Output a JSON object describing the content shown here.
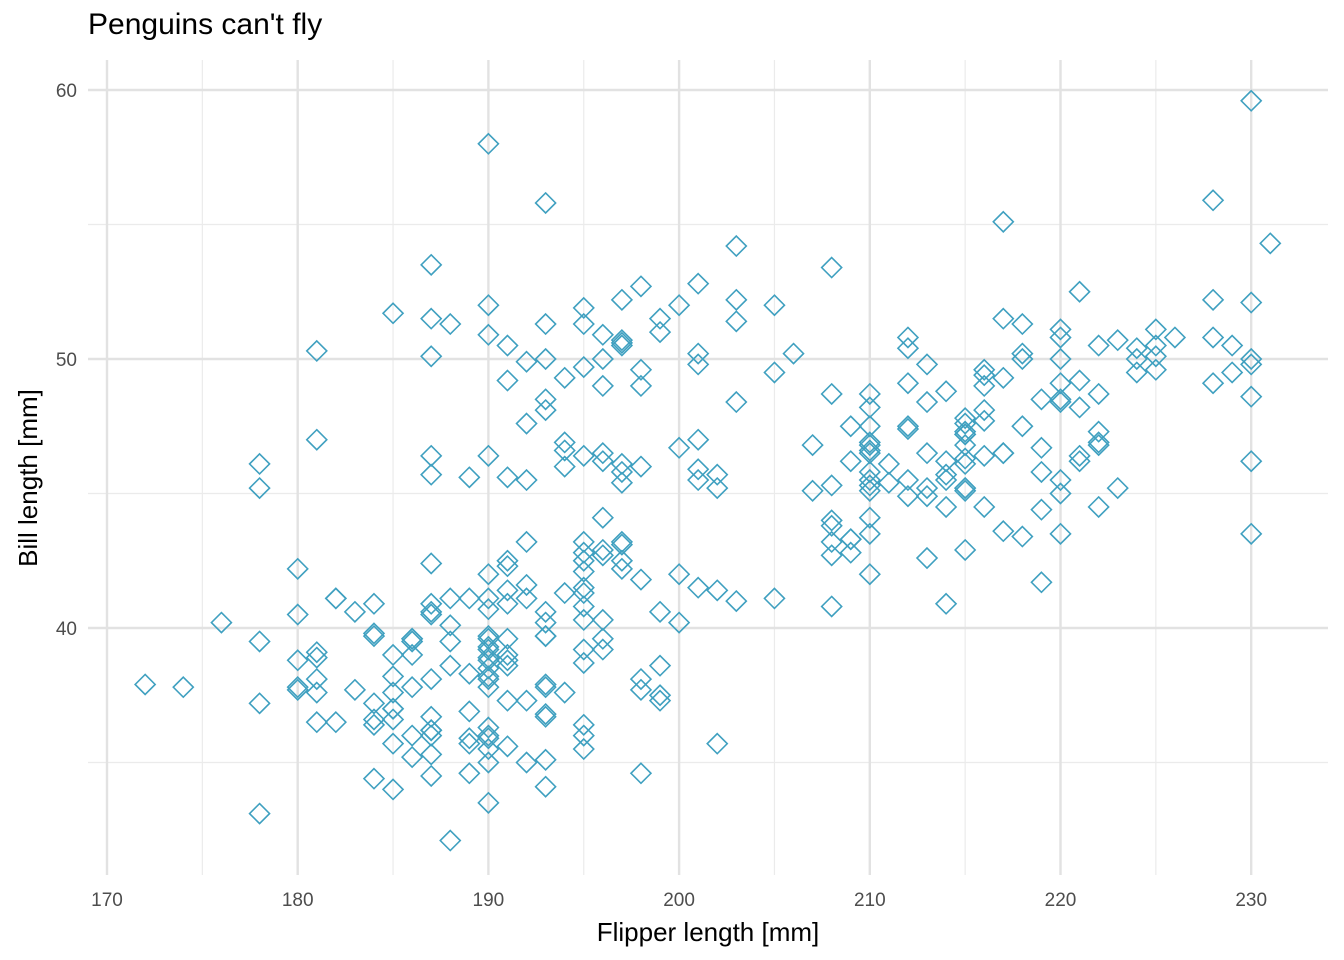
{
  "chart_data": {
    "type": "scatter",
    "title": "Penguins can't fly",
    "xlabel": "Flipper length [mm]",
    "ylabel": "Bill length [mm]",
    "xlim": [
      169.5,
      233.5
    ],
    "ylim": [
      31.0,
      60.5
    ],
    "x_ticks": [
      170,
      180,
      190,
      200,
      210,
      220,
      230
    ],
    "y_ticks": [
      40,
      50,
      60
    ],
    "grid": true,
    "marker": "open-diamond",
    "point_color": "#3fa0c0",
    "points": [
      [
        181,
        39.1
      ],
      [
        186,
        39.5
      ],
      [
        195,
        40.3
      ],
      [
        193,
        36.7
      ],
      [
        190,
        39.3
      ],
      [
        181,
        38.9
      ],
      [
        195,
        39.2
      ],
      [
        193,
        34.1
      ],
      [
        190,
        42.0
      ],
      [
        186,
        37.8
      ],
      [
        180,
        37.8
      ],
      [
        182,
        41.1
      ],
      [
        191,
        38.6
      ],
      [
        198,
        34.6
      ],
      [
        185,
        36.6
      ],
      [
        195,
        38.7
      ],
      [
        197,
        42.5
      ],
      [
        184,
        34.4
      ],
      [
        194,
        46.0
      ],
      [
        174,
        37.8
      ],
      [
        180,
        37.7
      ],
      [
        189,
        35.9
      ],
      [
        185,
        38.2
      ],
      [
        180,
        38.8
      ],
      [
        187,
        35.3
      ],
      [
        183,
        40.6
      ],
      [
        187,
        40.5
      ],
      [
        172,
        37.9
      ],
      [
        180,
        40.5
      ],
      [
        178,
        39.5
      ],
      [
        178,
        37.2
      ],
      [
        188,
        39.5
      ],
      [
        184,
        40.9
      ],
      [
        195,
        36.4
      ],
      [
        196,
        39.2
      ],
      [
        190,
        38.8
      ],
      [
        180,
        42.2
      ],
      [
        181,
        37.6
      ],
      [
        184,
        39.8
      ],
      [
        182,
        36.5
      ],
      [
        195,
        40.8
      ],
      [
        186,
        36.0
      ],
      [
        196,
        44.1
      ],
      [
        185,
        37.0
      ],
      [
        190,
        39.6
      ],
      [
        182,
        41.1
      ],
      [
        190,
        36.0
      ],
      [
        191,
        42.3
      ],
      [
        186,
        39.6
      ],
      [
        188,
        40.1
      ],
      [
        190,
        35.0
      ],
      [
        200,
        42.0
      ],
      [
        187,
        34.5
      ],
      [
        191,
        41.4
      ],
      [
        186,
        39.0
      ],
      [
        193,
        40.6
      ],
      [
        181,
        36.5
      ],
      [
        194,
        37.6
      ],
      [
        185,
        35.7
      ],
      [
        195,
        41.3
      ],
      [
        185,
        37.6
      ],
      [
        192,
        41.1
      ],
      [
        184,
        36.4
      ],
      [
        192,
        41.6
      ],
      [
        195,
        35.5
      ],
      [
        188,
        41.1
      ],
      [
        190,
        35.9
      ],
      [
        198,
        41.8
      ],
      [
        190,
        33.5
      ],
      [
        190,
        39.7
      ],
      [
        196,
        39.6
      ],
      [
        197,
        45.8
      ],
      [
        190,
        35.5
      ],
      [
        195,
        42.8
      ],
      [
        191,
        40.9
      ],
      [
        184,
        37.2
      ],
      [
        187,
        36.2
      ],
      [
        195,
        42.1
      ],
      [
        189,
        34.6
      ],
      [
        196,
        42.9
      ],
      [
        187,
        36.7
      ],
      [
        193,
        35.1
      ],
      [
        191,
        37.3
      ],
      [
        194,
        41.3
      ],
      [
        190,
        36.3
      ],
      [
        189,
        36.9
      ],
      [
        189,
        38.3
      ],
      [
        190,
        38.9
      ],
      [
        202,
        35.7
      ],
      [
        205,
        41.1
      ],
      [
        185,
        34.0
      ],
      [
        186,
        39.6
      ],
      [
        187,
        36.2
      ],
      [
        208,
        40.8
      ],
      [
        190,
        38.1
      ],
      [
        196,
        40.3
      ],
      [
        178,
        33.1
      ],
      [
        192,
        43.2
      ],
      [
        192,
        35.0
      ],
      [
        203,
        41.0
      ],
      [
        183,
        37.7
      ],
      [
        190,
        37.8
      ],
      [
        193,
        37.9
      ],
      [
        184,
        39.7
      ],
      [
        199,
        38.6
      ],
      [
        190,
        38.2
      ],
      [
        181,
        38.1
      ],
      [
        197,
        43.2
      ],
      [
        198,
        38.1
      ],
      [
        191,
        45.6
      ],
      [
        193,
        39.7
      ],
      [
        197,
        42.2
      ],
      [
        191,
        39.6
      ],
      [
        196,
        42.7
      ],
      [
        188,
        38.6
      ],
      [
        199,
        37.3
      ],
      [
        189,
        35.7
      ],
      [
        189,
        41.1
      ],
      [
        187,
        36.2
      ],
      [
        198,
        37.7
      ],
      [
        176,
        40.2
      ],
      [
        202,
        41.4
      ],
      [
        186,
        35.2
      ],
      [
        199,
        40.6
      ],
      [
        191,
        38.8
      ],
      [
        195,
        41.5
      ],
      [
        191,
        39.0
      ],
      [
        210,
        44.1
      ],
      [
        190,
        38.5
      ],
      [
        197,
        43.1
      ],
      [
        193,
        36.8
      ],
      [
        199,
        37.5
      ],
      [
        187,
        38.1
      ],
      [
        190,
        41.1
      ],
      [
        191,
        35.6
      ],
      [
        200,
        40.2
      ],
      [
        185,
        37.0
      ],
      [
        193,
        39.7
      ],
      [
        193,
        40.2
      ],
      [
        187,
        40.6
      ],
      [
        188,
        32.1
      ],
      [
        190,
        40.7
      ],
      [
        192,
        37.3
      ],
      [
        185,
        39.0
      ],
      [
        190,
        39.2
      ],
      [
        184,
        36.6
      ],
      [
        195,
        36.0
      ],
      [
        193,
        37.8
      ],
      [
        187,
        36.0
      ],
      [
        201,
        41.5
      ],
      [
        211,
        46.1
      ],
      [
        230,
        50.0
      ],
      [
        210,
        48.7
      ],
      [
        218,
        50.0
      ],
      [
        215,
        47.6
      ],
      [
        210,
        46.5
      ],
      [
        211,
        45.4
      ],
      [
        219,
        46.7
      ],
      [
        209,
        43.3
      ],
      [
        215,
        46.8
      ],
      [
        214,
        40.9
      ],
      [
        216,
        49.0
      ],
      [
        214,
        45.5
      ],
      [
        213,
        48.4
      ],
      [
        210,
        45.8
      ],
      [
        217,
        49.3
      ],
      [
        210,
        42.0
      ],
      [
        221,
        49.2
      ],
      [
        209,
        46.2
      ],
      [
        222,
        48.7
      ],
      [
        218,
        50.2
      ],
      [
        215,
        45.1
      ],
      [
        213,
        46.5
      ],
      [
        215,
        46.3
      ],
      [
        215,
        42.9
      ],
      [
        215,
        46.1
      ],
      [
        216,
        44.5
      ],
      [
        215,
        47.8
      ],
      [
        210,
        48.2
      ],
      [
        220,
        50.0
      ],
      [
        222,
        47.3
      ],
      [
        209,
        42.8
      ],
      [
        207,
        45.1
      ],
      [
        230,
        59.6
      ],
      [
        220,
        49.1
      ],
      [
        220,
        48.4
      ],
      [
        213,
        42.6
      ],
      [
        219,
        44.4
      ],
      [
        208,
        44.0
      ],
      [
        208,
        48.7
      ],
      [
        208,
        42.7
      ],
      [
        225,
        49.6
      ],
      [
        210,
        45.3
      ],
      [
        216,
        49.6
      ],
      [
        222,
        50.5
      ],
      [
        217,
        43.6
      ],
      [
        210,
        45.5
      ],
      [
        225,
        50.5
      ],
      [
        213,
        44.9
      ],
      [
        215,
        45.2
      ],
      [
        210,
        46.6
      ],
      [
        220,
        48.5
      ],
      [
        210,
        45.1
      ],
      [
        225,
        50.1
      ],
      [
        217,
        46.5
      ],
      [
        220,
        45.0
      ],
      [
        208,
        43.8
      ],
      [
        220,
        45.5
      ],
      [
        208,
        43.2
      ],
      [
        224,
        50.4
      ],
      [
        208,
        45.3
      ],
      [
        221,
        46.2
      ],
      [
        214,
        45.7
      ],
      [
        231,
        54.3
      ],
      [
        219,
        45.8
      ],
      [
        230,
        49.8
      ],
      [
        214,
        46.2
      ],
      [
        229,
        49.5
      ],
      [
        220,
        43.5
      ],
      [
        223,
        50.7
      ],
      [
        216,
        47.7
      ],
      [
        221,
        46.4
      ],
      [
        221,
        48.2
      ],
      [
        217,
        46.5
      ],
      [
        216,
        46.4
      ],
      [
        230,
        48.6
      ],
      [
        209,
        47.5
      ],
      [
        220,
        51.1
      ],
      [
        215,
        45.2
      ],
      [
        223,
        45.2
      ],
      [
        212,
        49.1
      ],
      [
        221,
        52.5
      ],
      [
        212,
        47.4
      ],
      [
        224,
        50.0
      ],
      [
        212,
        44.9
      ],
      [
        228,
        50.8
      ],
      [
        218,
        43.4
      ],
      [
        218,
        51.3
      ],
      [
        212,
        47.5
      ],
      [
        230,
        52.1
      ],
      [
        218,
        47.5
      ],
      [
        228,
        52.2
      ],
      [
        212,
        45.5
      ],
      [
        224,
        49.5
      ],
      [
        214,
        44.5
      ],
      [
        226,
        50.8
      ],
      [
        216,
        49.4
      ],
      [
        222,
        46.9
      ],
      [
        203,
        48.4
      ],
      [
        225,
        51.1
      ],
      [
        219,
        48.5
      ],
      [
        228,
        55.9
      ],
      [
        215,
        47.2
      ],
      [
        228,
        49.1
      ],
      [
        215,
        47.3
      ],
      [
        210,
        46.8
      ],
      [
        219,
        41.7
      ],
      [
        208,
        53.4
      ],
      [
        209,
        43.3
      ],
      [
        216,
        48.1
      ],
      [
        229,
        50.5
      ],
      [
        213,
        49.8
      ],
      [
        230,
        43.5
      ],
      [
        217,
        51.5
      ],
      [
        230,
        46.2
      ],
      [
        217,
        55.1
      ],
      [
        222,
        44.5
      ],
      [
        214,
        48.8
      ],
      [
        215,
        47.2
      ],
      [
        222,
        46.8
      ],
      [
        212,
        50.4
      ],
      [
        213,
        45.2
      ],
      [
        192,
        49.9
      ],
      [
        196,
        46.5
      ],
      [
        193,
        50.0
      ],
      [
        188,
        51.3
      ],
      [
        197,
        45.4
      ],
      [
        198,
        52.7
      ],
      [
        178,
        45.2
      ],
      [
        197,
        46.1
      ],
      [
        195,
        51.3
      ],
      [
        198,
        46.0
      ],
      [
        193,
        51.3
      ],
      [
        194,
        46.6
      ],
      [
        185,
        51.7
      ],
      [
        201,
        47.0
      ],
      [
        190,
        52.0
      ],
      [
        201,
        45.9
      ],
      [
        197,
        50.5
      ],
      [
        181,
        50.3
      ],
      [
        190,
        58.0
      ],
      [
        195,
        46.4
      ],
      [
        191,
        49.2
      ],
      [
        187,
        42.4
      ],
      [
        193,
        48.5
      ],
      [
        195,
        43.2
      ],
      [
        197,
        50.6
      ],
      [
        200,
        46.7
      ],
      [
        200,
        52.0
      ],
      [
        191,
        50.5
      ],
      [
        205,
        49.5
      ],
      [
        187,
        46.4
      ],
      [
        201,
        52.8
      ],
      [
        187,
        40.9
      ],
      [
        203,
        54.2
      ],
      [
        195,
        42.5
      ],
      [
        199,
        51.0
      ],
      [
        195,
        49.7
      ],
      [
        210,
        47.5
      ],
      [
        192,
        47.6
      ],
      [
        205,
        52.0
      ],
      [
        210,
        46.9
      ],
      [
        187,
        53.5
      ],
      [
        196,
        49.0
      ],
      [
        196,
        46.2
      ],
      [
        196,
        50.9
      ],
      [
        201,
        45.5
      ],
      [
        190,
        50.9
      ],
      [
        212,
        50.8
      ],
      [
        187,
        50.1
      ],
      [
        198,
        49.0
      ],
      [
        199,
        51.5
      ],
      [
        201,
        49.8
      ],
      [
        193,
        48.1
      ],
      [
        203,
        51.4
      ],
      [
        187,
        45.7
      ],
      [
        197,
        50.7
      ],
      [
        191,
        42.5
      ],
      [
        203,
        52.2
      ],
      [
        202,
        45.2
      ],
      [
        194,
        49.3
      ],
      [
        206,
        50.2
      ],
      [
        189,
        45.6
      ],
      [
        195,
        51.9
      ],
      [
        207,
        46.8
      ],
      [
        202,
        45.7
      ],
      [
        193,
        55.8
      ],
      [
        210,
        43.5
      ],
      [
        198,
        49.6
      ],
      [
        220,
        50.8
      ],
      [
        201,
        50.2
      ],
      [
        181,
        47.0
      ],
      [
        178,
        46.1
      ],
      [
        190,
        46.4
      ],
      [
        196,
        50.0
      ],
      [
        187,
        51.5
      ],
      [
        197,
        52.2
      ],
      [
        192,
        45.5
      ],
      [
        194,
        46.9
      ]
    ]
  }
}
